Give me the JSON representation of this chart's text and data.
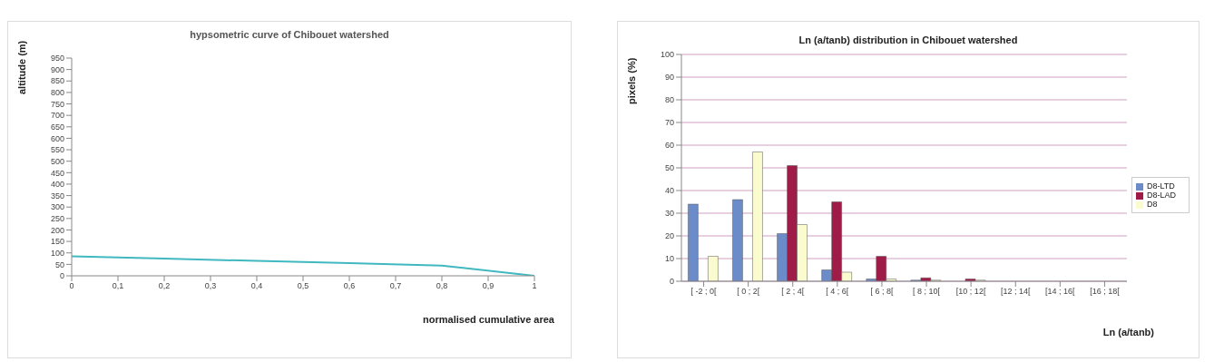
{
  "chart_data": [
    {
      "type": "line",
      "title": "hypsometric curve of Chibouet watershed",
      "xlabel": "normalised cumulative area",
      "ylabel": "altitude (m)",
      "x": [
        0,
        0.2,
        0.4,
        0.6,
        0.8,
        1
      ],
      "series": [
        {
          "color": "#40b8c0",
          "values": [
            85,
            75,
            65,
            55,
            45,
            0
          ]
        }
      ],
      "xlim": [
        0,
        1
      ],
      "xticks": [
        0,
        {
          "value": 0.1,
          "label": "0,1"
        },
        {
          "value": 0.2,
          "label": "0,2"
        },
        {
          "value": 0.3,
          "label": "0,3"
        },
        {
          "value": 0.4,
          "label": "0,4"
        },
        {
          "value": 0.5,
          "label": "0,5"
        },
        {
          "value": 0.6,
          "label": "0,6"
        },
        {
          "value": 0.7,
          "label": "0,7"
        },
        {
          "value": 0.8,
          "label": "0,8"
        },
        {
          "value": 0.9,
          "label": "0,9"
        },
        1
      ],
      "ylim": [
        0,
        950
      ],
      "yticks": [
        0,
        50,
        100,
        150,
        200,
        250,
        300,
        350,
        400,
        450,
        500,
        550,
        600,
        650,
        700,
        750,
        800,
        850,
        900,
        950
      ],
      "grid": false,
      "legend": false,
      "marker": "none",
      "line_style": "solid"
    },
    {
      "type": "bar",
      "title": "Ln (a/tanb) distribution in Chibouet watershed",
      "xlabel": "Ln (a/tanb)",
      "ylabel": "pixels (%)",
      "categories": [
        "[ -2 ; 0[",
        "[ 0 ; 2[",
        "[ 2 ; 4[",
        "[ 4 ; 6[",
        "[ 6 ; 8[",
        "[ 8 ; 10[",
        "[10 ; 12[",
        "[12 ; 14[",
        "[14 ; 16[",
        "[16 ; 18["
      ],
      "series": [
        {
          "name": "D8-LTD",
          "color": "#6b8cc8",
          "values": [
            34,
            36,
            21,
            5,
            1,
            0.5,
            0,
            0,
            0,
            0
          ]
        },
        {
          "name": "D8-LAD",
          "color": "#a01c48",
          "values": [
            0,
            0,
            51,
            35,
            11,
            1.5,
            1,
            0,
            0,
            0
          ]
        },
        {
          "name": "D8",
          "color": "#fbfbd0",
          "values": [
            11,
            57,
            25,
            4,
            1,
            0.5,
            0.5,
            0,
            0,
            0
          ]
        }
      ],
      "ylim": [
        0,
        100
      ],
      "yticks": [
        0,
        10,
        20,
        30,
        40,
        50,
        60,
        70,
        80,
        90,
        100
      ],
      "grid": "y",
      "legend": "right"
    }
  ]
}
